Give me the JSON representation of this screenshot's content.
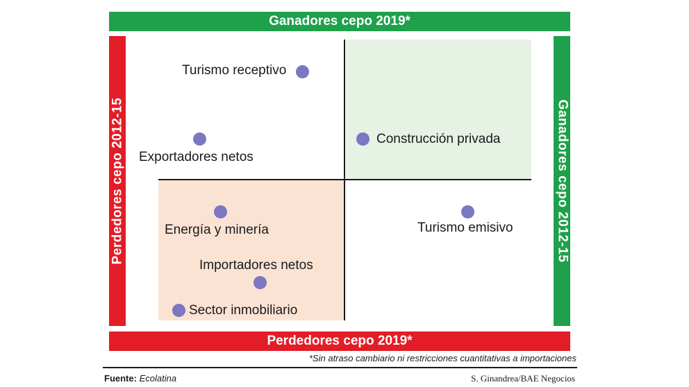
{
  "bands": {
    "top": "Ganadores cepo 2019*",
    "bottom": "Perdedores cepo 2019*",
    "left": "Perdedores cepo 2012-15",
    "right": "Ganadores cepo 2012-15"
  },
  "sectors": [
    {
      "label": "Turismo receptivo"
    },
    {
      "label": "Exportadores netos"
    },
    {
      "label": "Construcción privada"
    },
    {
      "label": "Energía y minería"
    },
    {
      "label": "Turismo emisivo"
    },
    {
      "label": "Importadores netos"
    },
    {
      "label": "Sector inmobiliario"
    }
  ],
  "footnote": "*Sin atraso cambiario ni restricciones cuantitativas a importaciones",
  "source": {
    "label": "Fuente:",
    "value": "Ecolatina"
  },
  "credit": "S. Ginandrea/BAE Negocios",
  "colors": {
    "winner_green": "#1fa04a",
    "loser_red": "#e21d27",
    "dot": "#7b77c0",
    "quad_green": "#e5f2e4",
    "quad_peach": "#fbe3d4"
  }
}
